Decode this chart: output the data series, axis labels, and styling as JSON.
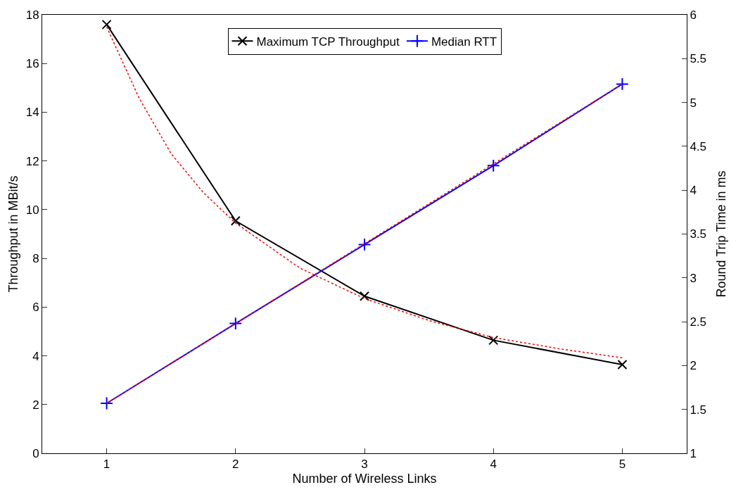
{
  "chart_data": {
    "type": "line",
    "xlabel": "Number of Wireless Links",
    "ylabel": "Throughput in MBit/s",
    "y2label": "Round Trip Time in ms",
    "x": [
      1,
      2,
      3,
      4,
      5
    ],
    "series": [
      {
        "name": "Maximum TCP Throughput",
        "color": "#000000",
        "marker": "cross",
        "values": [
          17.6,
          9.54,
          6.45,
          4.64,
          3.64
        ]
      },
      {
        "name": "Median RTT",
        "color": "#0000ff",
        "marker": "plus",
        "axis": "y2",
        "values": [
          1.57,
          2.48,
          3.38,
          4.28,
          5.21
        ]
      },
      {
        "color": "#ff0000",
        "line_style": "dotted",
        "marker": "none",
        "x": [
          1,
          1.25,
          1.5,
          1.75,
          2,
          2.5,
          3,
          3.5,
          4,
          4.5,
          5
        ],
        "values": [
          17.5,
          14.6,
          12.3,
          10.7,
          9.45,
          7.6,
          6.35,
          5.45,
          4.75,
          4.3,
          3.92
        ]
      },
      {
        "color": "#ff0000",
        "line_style": "dotted",
        "marker": "none",
        "axis": "y2",
        "x": [
          1,
          5
        ],
        "values": [
          1.57,
          5.21
        ]
      }
    ],
    "xlim": [
      0.5,
      5.5
    ],
    "xticks": [
      1,
      2,
      3,
      4,
      5
    ],
    "ylim": [
      0,
      18
    ],
    "yticks": [
      0,
      2,
      4,
      6,
      8,
      10,
      12,
      14,
      16,
      18
    ],
    "y2lim": [
      1,
      6
    ],
    "y2ticks": [
      1,
      1.5,
      2,
      2.5,
      3,
      3.5,
      4,
      4.5,
      5,
      5.5,
      6
    ],
    "legend": "top"
  }
}
